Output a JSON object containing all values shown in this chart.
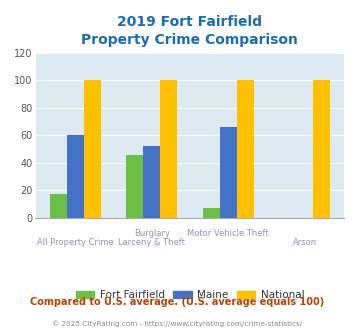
{
  "title_line1": "2019 Fort Fairfield",
  "title_line2": "Property Crime Comparison",
  "cat_labels_top": [
    "",
    "Burglary",
    "Motor Vehicle Theft",
    ""
  ],
  "cat_labels_bot": [
    "All Property Crime",
    "Larceny & Theft",
    "",
    "Arson"
  ],
  "fort_fairfield": [
    17,
    46,
    7,
    0
  ],
  "maine": [
    60,
    52,
    66,
    0
  ],
  "national": [
    100,
    100,
    100,
    100
  ],
  "color_ff": "#6abf47",
  "color_maine": "#4472c4",
  "color_national": "#ffc000",
  "ylim": [
    0,
    120
  ],
  "yticks": [
    0,
    20,
    40,
    60,
    80,
    100,
    120
  ],
  "bg_color": "#dce9f0",
  "title_color": "#1a6db5",
  "xlabel_color": "#9b8db8",
  "footer_text": "Compared to U.S. average. (U.S. average equals 100)",
  "footer_color": "#c04000",
  "credit_text": "© 2025 CityRating.com - https://www.cityrating.com/crime-statistics/",
  "credit_color": "#888888",
  "legend_labels": [
    "Fort Fairfield",
    "Maine",
    "National"
  ],
  "legend_text_color": "#333333"
}
